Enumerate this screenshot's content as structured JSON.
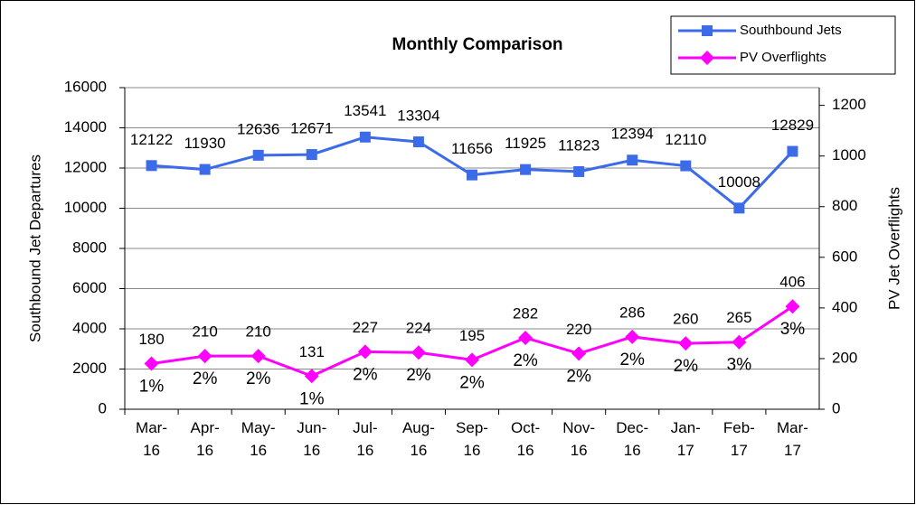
{
  "chart_data": {
    "type": "line",
    "title": "Monthly Comparison",
    "y_label": "Southbound Jet Departures",
    "y2_label": "PV Jet Overflights",
    "categories": [
      "Mar-16",
      "Apr-16",
      "May-16",
      "Jun-16",
      "Jul-16",
      "Aug-16",
      "Sep-16",
      "Oct-16",
      "Nov-16",
      "Dec-16",
      "Jan-17",
      "Feb-17",
      "Mar-17"
    ],
    "series": [
      {
        "name": "Southbound Jets",
        "color": "#3b6be8",
        "marker": "square",
        "values": [
          12122,
          11930,
          12636,
          12671,
          13541,
          13304,
          11656,
          11925,
          11823,
          12394,
          12110,
          10008,
          12829
        ]
      },
      {
        "name": "PV Overflights",
        "color": "#ff00ff",
        "marker": "diamond",
        "axis": "y2",
        "values": [
          180,
          210,
          210,
          131,
          227,
          224,
          195,
          282,
          220,
          286,
          260,
          265,
          406
        ],
        "percent_labels": [
          "1%",
          "2%",
          "2%",
          "1%",
          "2%",
          "2%",
          "2%",
          "2%",
          "2%",
          "2%",
          "2%",
          "3%",
          "3%"
        ]
      }
    ],
    "ylim": [
      0,
      16000
    ],
    "yticks": [
      0,
      2000,
      4000,
      6000,
      8000,
      10000,
      12000,
      14000,
      16000
    ],
    "y2lim": [
      0,
      1270
    ],
    "y2ticks": [
      0,
      200,
      400,
      600,
      800,
      1000,
      1200
    ],
    "grid": true,
    "legend": "top-right"
  }
}
